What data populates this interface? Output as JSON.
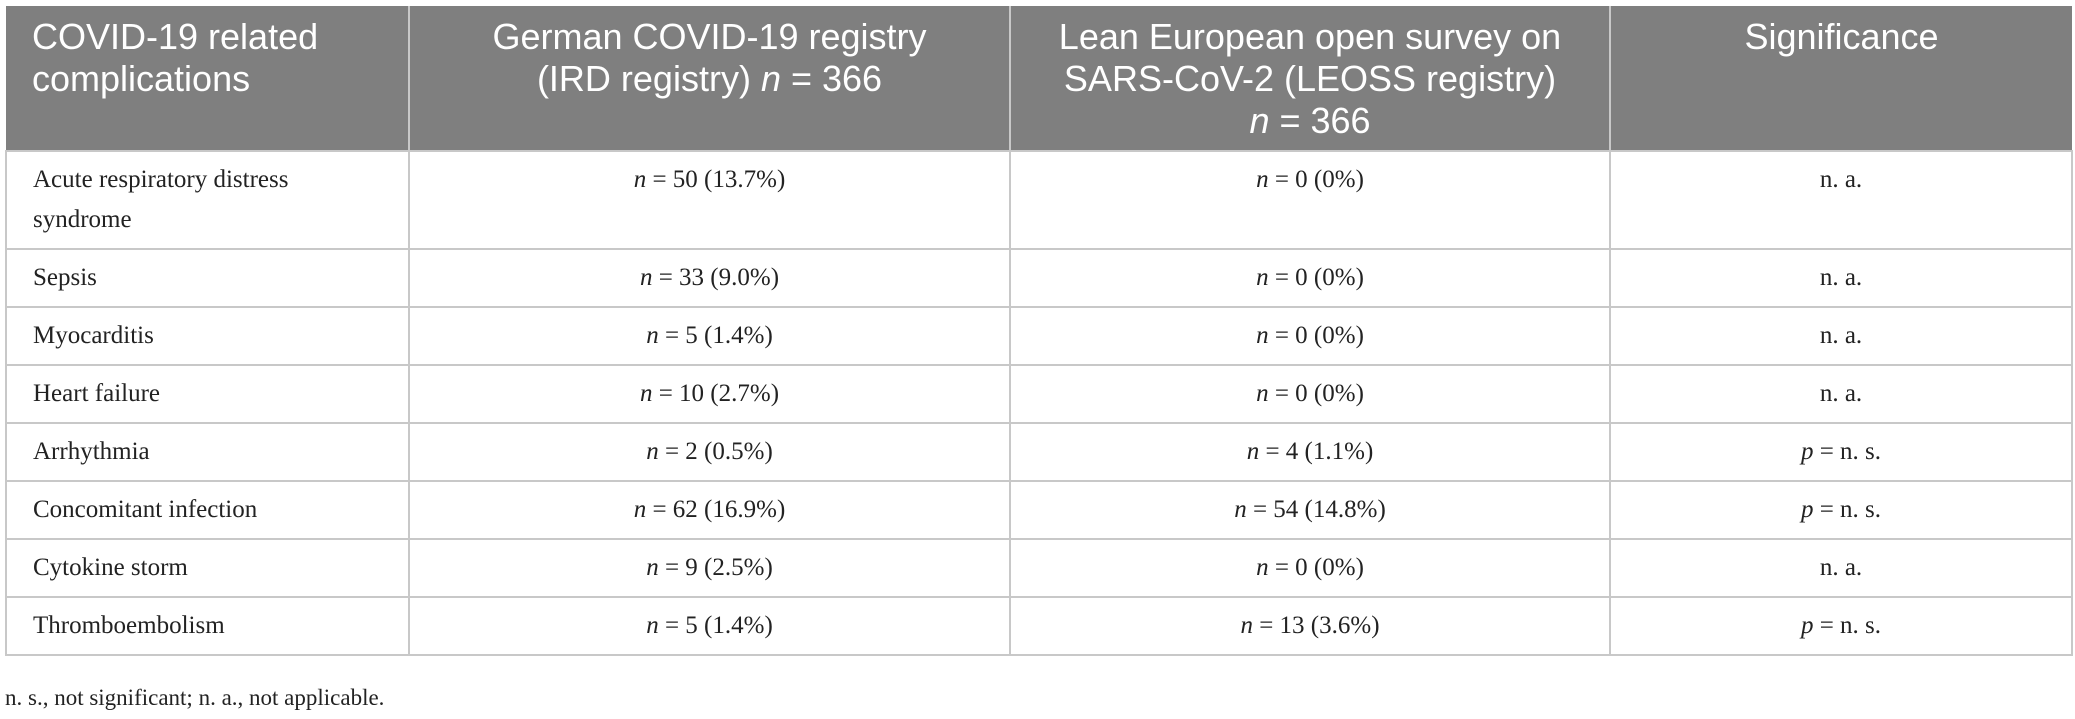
{
  "table": {
    "headers": [
      {
        "line1": "COVID-19 related",
        "line2": "complications",
        "line3": "",
        "n_label": "",
        "n_value": ""
      },
      {
        "line1": "German COVID-19 registry",
        "line2": "(IRD registry) ",
        "line3": "",
        "n_label": "n",
        "n_value": " = 366"
      },
      {
        "line1": "Lean European open survey on",
        "line2": "SARS-CoV-2 (LEOSS registry)",
        "line3": "",
        "n_label": "n",
        "n_value": " = 366"
      },
      {
        "line1": "Significance",
        "line2": "",
        "line3": "",
        "n_label": "",
        "n_value": ""
      }
    ],
    "rows": [
      {
        "complication": "Acute respiratory distress syndrome",
        "ird_n": "n",
        "ird_val": " = 50 (13.7%)",
        "leoss_n": "n",
        "leoss_val": " = 0 (0%)",
        "sig_p": "",
        "sig_val": "n. a."
      },
      {
        "complication": "Sepsis",
        "ird_n": "n",
        "ird_val": " = 33 (9.0%)",
        "leoss_n": "n",
        "leoss_val": " = 0 (0%)",
        "sig_p": "",
        "sig_val": "n. a."
      },
      {
        "complication": "Myocarditis",
        "ird_n": "n",
        "ird_val": " = 5 (1.4%)",
        "leoss_n": "n",
        "leoss_val": " = 0 (0%)",
        "sig_p": "",
        "sig_val": "n. a."
      },
      {
        "complication": "Heart failure",
        "ird_n": "n",
        "ird_val": " = 10 (2.7%)",
        "leoss_n": "n",
        "leoss_val": " = 0 (0%)",
        "sig_p": "",
        "sig_val": "n. a."
      },
      {
        "complication": "Arrhythmia",
        "ird_n": "n",
        "ird_val": " = 2 (0.5%)",
        "leoss_n": "n",
        "leoss_val": " = 4 (1.1%)",
        "sig_p": "p",
        "sig_val": " = n. s."
      },
      {
        "complication": "Concomitant infection",
        "ird_n": "n",
        "ird_val": " = 62 (16.9%)",
        "leoss_n": "n",
        "leoss_val": " = 54 (14.8%)",
        "sig_p": "p",
        "sig_val": " = n. s."
      },
      {
        "complication": "Cytokine storm",
        "ird_n": "n",
        "ird_val": " = 9 (2.5%)",
        "leoss_n": "n",
        "leoss_val": " = 0 (0%)",
        "sig_p": "",
        "sig_val": "n. a."
      },
      {
        "complication": "Thromboembolism",
        "ird_n": "n",
        "ird_val": " = 5 (1.4%)",
        "leoss_n": "n",
        "leoss_val": " = 13 (3.6%)",
        "sig_p": "p",
        "sig_val": " = n. s."
      }
    ]
  },
  "footnote": "n. s., not significant; n. a., not applicable.",
  "colors": {
    "header_bg": "#7f7f7f",
    "header_text": "#ffffff",
    "grid": "#c8c8c8",
    "body_text": "#222222"
  }
}
